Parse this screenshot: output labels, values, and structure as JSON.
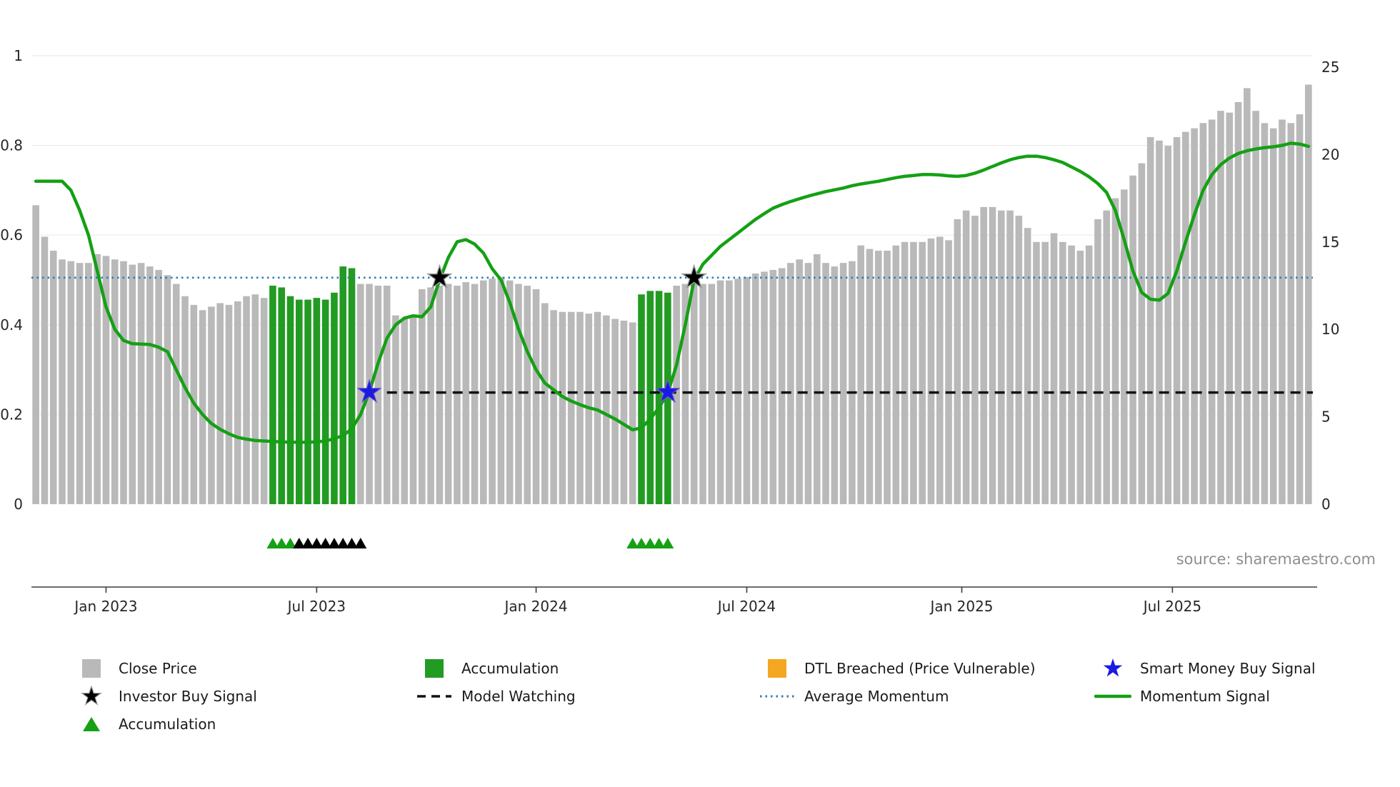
{
  "source_credit": "source: sharemaestro.com",
  "colors": {
    "close_price": "#b9b9b9",
    "accumulation": "#229b22",
    "momentum": "#14a014",
    "average_momentum": "#2f7bb6",
    "model_watching": "#111111",
    "investor_star": "#000000",
    "investor_star_edge": "#999999",
    "smart_money_star": "#1a1ae0",
    "smart_money_star_edge": "#6a5acd",
    "dtl_breached": "#f5a623",
    "triangle_green": "#16a016",
    "triangle_black": "#000000",
    "axis_text": "#262626",
    "source_text": "#8e8e8e",
    "grid": "#ebebeb",
    "spine": "#3c3c3c"
  },
  "axes": {
    "left_ticks": [
      0,
      0.2,
      0.4,
      0.6,
      0.8,
      1
    ],
    "left_tick_labels": [
      "0",
      "0.2",
      "0.4",
      "0.6",
      "0.8",
      "1"
    ],
    "right_ticks": [
      0,
      5,
      10,
      15,
      20,
      25
    ],
    "right_tick_labels": [
      "0",
      "5",
      "10",
      "15",
      "20",
      "25"
    ],
    "x_tick_labels": [
      "Jan 2023",
      "Jul 2023",
      "Jan 2024",
      "Jul 2024",
      "Jan 2025",
      "Jul 2025"
    ],
    "x_tick_bar_indices": [
      8,
      32,
      57,
      81,
      105.5,
      129.5
    ]
  },
  "legend": {
    "close_price": "Close Price",
    "investor_buy_signal": "Investor Buy Signal",
    "accumulation_triangle": "Accumulation",
    "accumulation_bar": "Accumulation",
    "model_watching": "Model Watching",
    "dtl_breached": "DTL Breached (Price Vulnerable)",
    "average_momentum": "Average Momentum",
    "smart_money_buy_signal": "Smart Money Buy Signal",
    "momentum_signal": "Momentum Signal"
  },
  "chart_data": {
    "type": "bar+line",
    "title": "",
    "x_axis": {
      "start": "Nov 2022",
      "end": "Nov 2025",
      "frequency": "weekly",
      "gridlines": true
    },
    "left_y_axis": {
      "series": "Momentum Signal",
      "range": [
        0,
        1
      ]
    },
    "right_y_axis": {
      "series": "Close Price",
      "range": [
        0,
        25
      ]
    },
    "close_price_bars": {
      "axis": "right",
      "values": [
        17.1,
        15.3,
        14.5,
        14.0,
        13.9,
        13.8,
        13.8,
        14.3,
        14.2,
        14.0,
        13.9,
        13.7,
        13.8,
        13.6,
        13.4,
        13.1,
        12.6,
        11.9,
        11.4,
        11.1,
        11.3,
        11.5,
        11.4,
        11.6,
        11.9,
        12.0,
        11.8,
        12.5,
        12.4,
        11.9,
        11.7,
        11.7,
        11.8,
        11.7,
        12.1,
        13.6,
        13.5,
        12.6,
        12.6,
        12.5,
        12.5,
        10.8,
        10.6,
        10.8,
        12.3,
        12.4,
        12.5,
        12.6,
        12.5,
        12.7,
        12.6,
        12.8,
        12.9,
        13.0,
        12.8,
        12.6,
        12.5,
        12.3,
        11.5,
        11.1,
        11.0,
        11.0,
        11.0,
        10.9,
        11.0,
        10.8,
        10.6,
        10.5,
        10.4,
        12.0,
        12.2,
        12.2,
        12.1,
        12.5,
        12.6,
        12.7,
        12.6,
        12.6,
        12.8,
        12.8,
        12.9,
        13.0,
        13.2,
        13.3,
        13.4,
        13.5,
        13.8,
        14.0,
        13.8,
        14.3,
        13.8,
        13.6,
        13.8,
        13.9,
        14.8,
        14.6,
        14.5,
        14.5,
        14.8,
        15.0,
        15.0,
        15.0,
        15.2,
        15.3,
        15.1,
        16.3,
        16.8,
        16.5,
        17.0,
        17.0,
        16.8,
        16.8,
        16.5,
        15.8,
        15.0,
        15.0,
        15.5,
        15.0,
        14.8,
        14.5,
        14.8,
        16.3,
        16.8,
        17.5,
        18.0,
        18.8,
        19.5,
        21.0,
        20.8,
        20.5,
        21.0,
        21.3,
        21.5,
        21.8,
        22.0,
        22.5,
        22.4,
        23.0,
        23.8,
        22.5,
        21.8,
        21.5,
        22.0,
        21.8,
        22.3,
        24.0
      ],
      "accumulation_indices": [
        27,
        28,
        29,
        30,
        31,
        32,
        33,
        34,
        35,
        36,
        69,
        70,
        71,
        72
      ]
    },
    "momentum_signal": {
      "axis": "left",
      "values": [
        0.72,
        0.72,
        0.72,
        0.72,
        0.7,
        0.655,
        0.6,
        0.52,
        0.44,
        0.39,
        0.365,
        0.358,
        0.357,
        0.356,
        0.35,
        0.34,
        0.3,
        0.26,
        0.225,
        0.2,
        0.18,
        0.167,
        0.157,
        0.149,
        0.145,
        0.142,
        0.141,
        0.14,
        0.139,
        0.138,
        0.138,
        0.138,
        0.139,
        0.141,
        0.146,
        0.153,
        0.168,
        0.2,
        0.25,
        0.315,
        0.37,
        0.4,
        0.415,
        0.42,
        0.418,
        0.44,
        0.5,
        0.55,
        0.585,
        0.59,
        0.58,
        0.56,
        0.525,
        0.5,
        0.45,
        0.39,
        0.34,
        0.3,
        0.27,
        0.255,
        0.24,
        0.23,
        0.222,
        0.215,
        0.21,
        0.2,
        0.19,
        0.178,
        0.166,
        0.17,
        0.19,
        0.215,
        0.248,
        0.31,
        0.4,
        0.5,
        0.535,
        0.555,
        0.575,
        0.59,
        0.605,
        0.62,
        0.635,
        0.648,
        0.66,
        0.668,
        0.675,
        0.681,
        0.687,
        0.692,
        0.697,
        0.701,
        0.705,
        0.71,
        0.714,
        0.717,
        0.72,
        0.724,
        0.728,
        0.731,
        0.733,
        0.735,
        0.735,
        0.734,
        0.732,
        0.731,
        0.733,
        0.738,
        0.745,
        0.753,
        0.761,
        0.768,
        0.773,
        0.776,
        0.776,
        0.773,
        0.768,
        0.762,
        0.752,
        0.742,
        0.73,
        0.715,
        0.695,
        0.655,
        0.59,
        0.52,
        0.472,
        0.457,
        0.455,
        0.47,
        0.52,
        0.585,
        0.645,
        0.7,
        0.735,
        0.757,
        0.772,
        0.782,
        0.788,
        0.792,
        0.795,
        0.797,
        0.8,
        0.805,
        0.803,
        0.798
      ]
    },
    "average_momentum": {
      "value": 0.505,
      "style": "dotted"
    },
    "model_watching": {
      "value": 0.249,
      "start_index": 40,
      "style": "dashed"
    },
    "markers": {
      "investor_buy_signals": [
        {
          "index": 46,
          "momentum": 0.505
        },
        {
          "index": 75,
          "momentum": 0.505
        }
      ],
      "smart_money_buy_signals": [
        {
          "index": 38,
          "momentum": 0.25
        },
        {
          "index": 72,
          "momentum": 0.25
        }
      ],
      "accumulation_triangles_green": [
        27,
        28,
        29,
        30,
        31,
        68,
        69,
        70,
        71,
        72
      ],
      "accumulation_triangles_black": [
        30,
        31,
        32,
        33,
        34,
        35,
        36,
        37
      ]
    }
  }
}
